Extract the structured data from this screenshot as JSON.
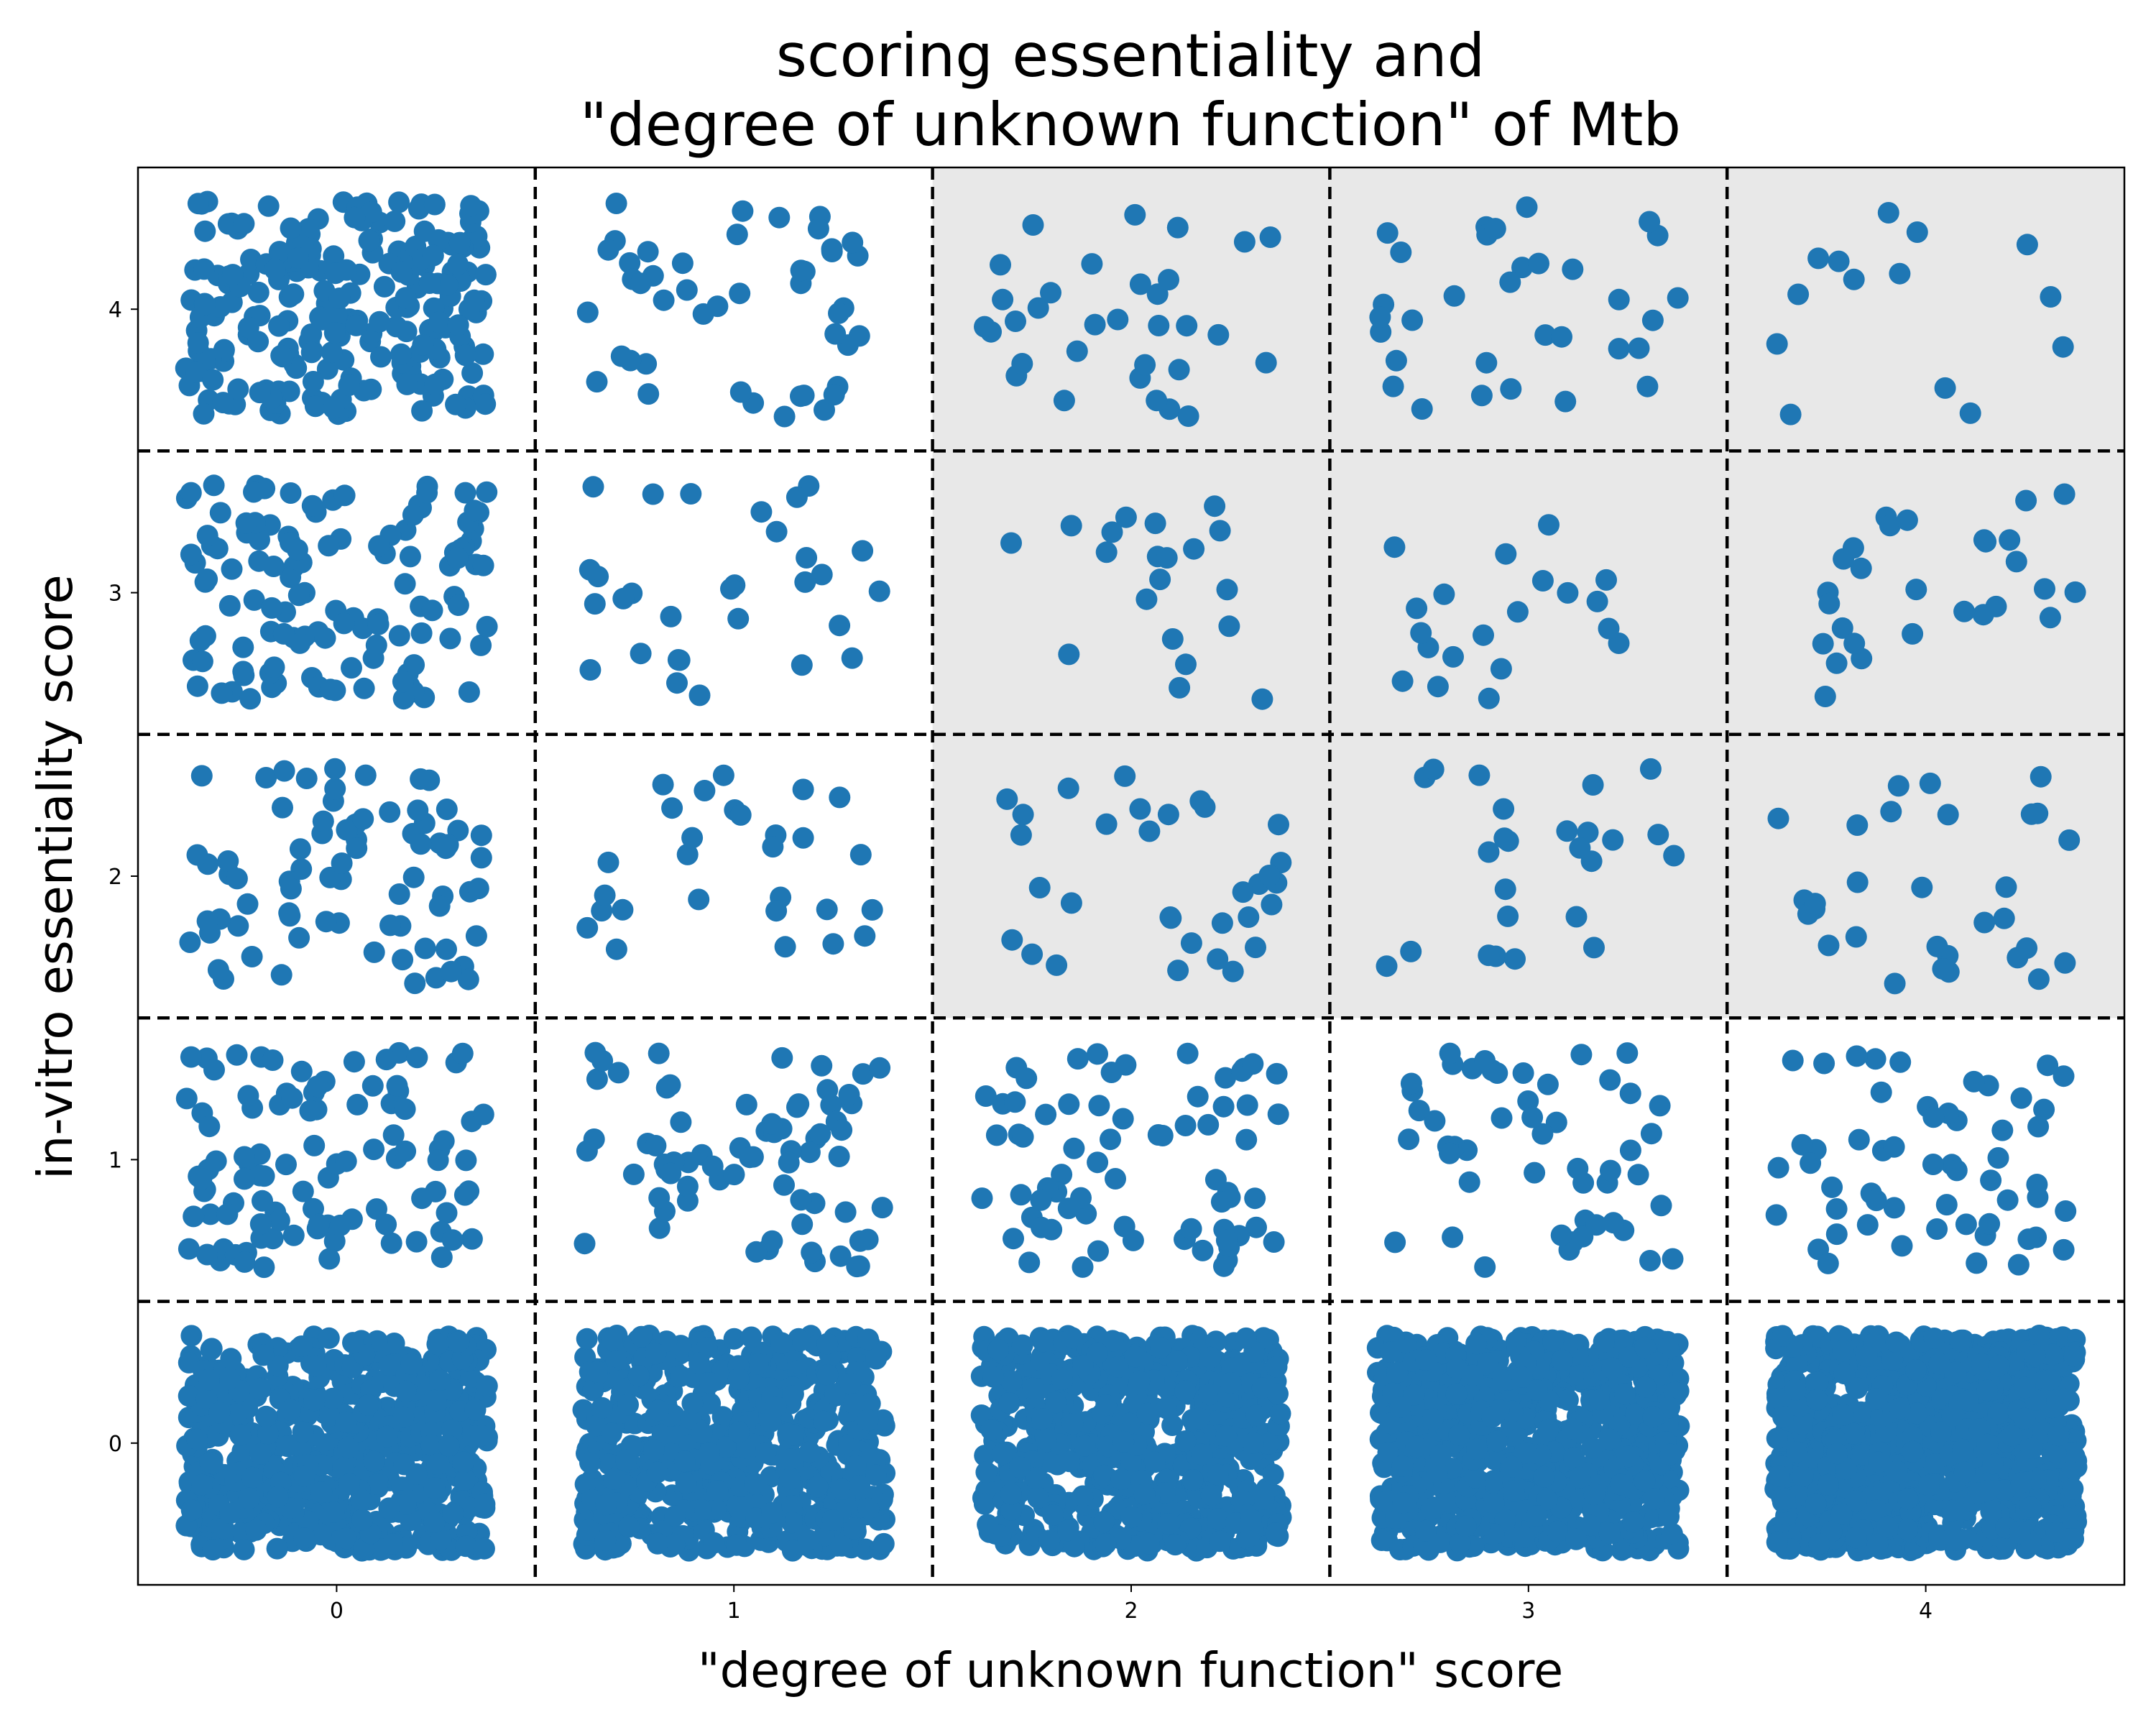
{
  "chart_data": {
    "type": "scatter",
    "title_lines": [
      "scoring essentiality and",
      "\"degree of unknown function\" of Mtb"
    ],
    "xlabel": "\"degree of unknown function\" score",
    "ylabel": "in-vitro essentiality score",
    "xlim": [
      -0.5,
      4.5
    ],
    "ylim": [
      -0.5,
      4.5
    ],
    "xticks": [
      "0",
      "1",
      "2",
      "3",
      "4"
    ],
    "yticks": [
      "0",
      "1",
      "2",
      "3",
      "4"
    ],
    "jitter": 0.38,
    "grid": "dashed black lines at category boundaries (0.5, 1.5, 2.5, 3.5)",
    "highlight_color": "#e8e8e8",
    "marker_color": "#1f77b4",
    "highlighted_cells": [
      {
        "x": 2,
        "y": 2
      },
      {
        "x": 2,
        "y": 3
      },
      {
        "x": 2,
        "y": 4
      },
      {
        "x": 3,
        "y": 2
      },
      {
        "x": 3,
        "y": 3
      },
      {
        "x": 3,
        "y": 4
      },
      {
        "x": 4,
        "y": 2
      },
      {
        "x": 4,
        "y": 3
      },
      {
        "x": 4,
        "y": 4
      }
    ],
    "cell_counts": [
      {
        "x": 0,
        "y": 0,
        "count": 600
      },
      {
        "x": 1,
        "y": 0,
        "count": 650
      },
      {
        "x": 2,
        "y": 0,
        "count": 620
      },
      {
        "x": 3,
        "y": 0,
        "count": 800
      },
      {
        "x": 4,
        "y": 0,
        "count": 1000
      },
      {
        "x": 0,
        "y": 1,
        "count": 100
      },
      {
        "x": 1,
        "y": 1,
        "count": 70
      },
      {
        "x": 2,
        "y": 1,
        "count": 70
      },
      {
        "x": 3,
        "y": 1,
        "count": 50
      },
      {
        "x": 4,
        "y": 1,
        "count": 55
      },
      {
        "x": 0,
        "y": 2,
        "count": 75
      },
      {
        "x": 1,
        "y": 2,
        "count": 28
      },
      {
        "x": 2,
        "y": 2,
        "count": 32
      },
      {
        "x": 3,
        "y": 2,
        "count": 25
      },
      {
        "x": 4,
        "y": 2,
        "count": 30
      },
      {
        "x": 0,
        "y": 3,
        "count": 120
      },
      {
        "x": 1,
        "y": 3,
        "count": 30
      },
      {
        "x": 2,
        "y": 3,
        "count": 20
      },
      {
        "x": 3,
        "y": 3,
        "count": 20
      },
      {
        "x": 4,
        "y": 3,
        "count": 28
      },
      {
        "x": 0,
        "y": 4,
        "count": 230
      },
      {
        "x": 1,
        "y": 4,
        "count": 45
      },
      {
        "x": 2,
        "y": 4,
        "count": 32
      },
      {
        "x": 3,
        "y": 4,
        "count": 32
      },
      {
        "x": 4,
        "y": 4,
        "count": 14
      }
    ]
  }
}
